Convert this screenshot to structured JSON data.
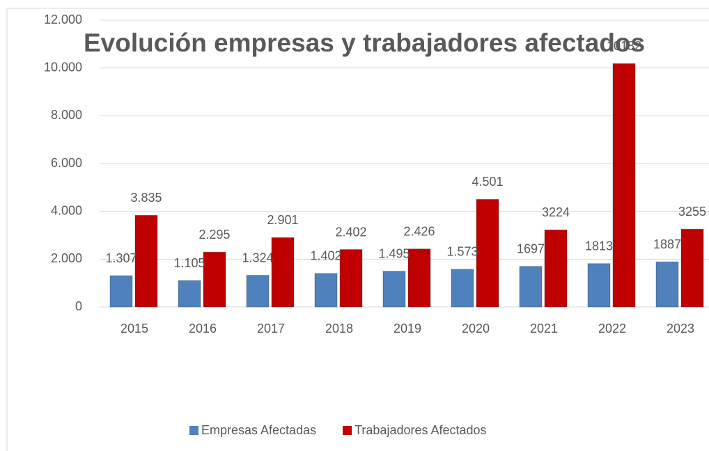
{
  "chart_data": {
    "type": "bar",
    "title": "Evolución empresas y trabajadores afectados",
    "categories": [
      "2015",
      "2016",
      "2017",
      "2018",
      "2019",
      "2020",
      "2021",
      "2022",
      "2023"
    ],
    "series": [
      {
        "name": "Empresas Afectadas",
        "color": "#4f81bd",
        "values": [
          1307,
          1105,
          1324,
          1402,
          1495,
          1573,
          1697,
          1813,
          1887
        ],
        "value_labels": [
          "1.307",
          "1.105",
          "1.324",
          "1.402",
          "1.495",
          "1.573",
          "1697",
          "1813",
          "1887"
        ]
      },
      {
        "name": "Trabajadores Afectados",
        "color": "#c00000",
        "values": [
          3835,
          2295,
          2901,
          2402,
          2426,
          4501,
          3224,
          10182,
          3255
        ],
        "value_labels": [
          "3.835",
          "2.295",
          "2.901",
          "2.402",
          "2.426",
          "4.501",
          "3224",
          "10182",
          "3255"
        ]
      }
    ],
    "ylim": [
      0,
      12000
    ],
    "yticks": [
      0,
      {
        "value": 2000,
        "label": "2.000"
      },
      {
        "value": 4000,
        "label": "4.000"
      },
      {
        "value": 6000,
        "label": "6.000"
      },
      {
        "value": 8000,
        "label": "8.000"
      },
      {
        "value": 10000,
        "label": "10.000"
      },
      {
        "value": 12000,
        "label": "12.000"
      }
    ],
    "grid": true,
    "legend": "bottom"
  }
}
